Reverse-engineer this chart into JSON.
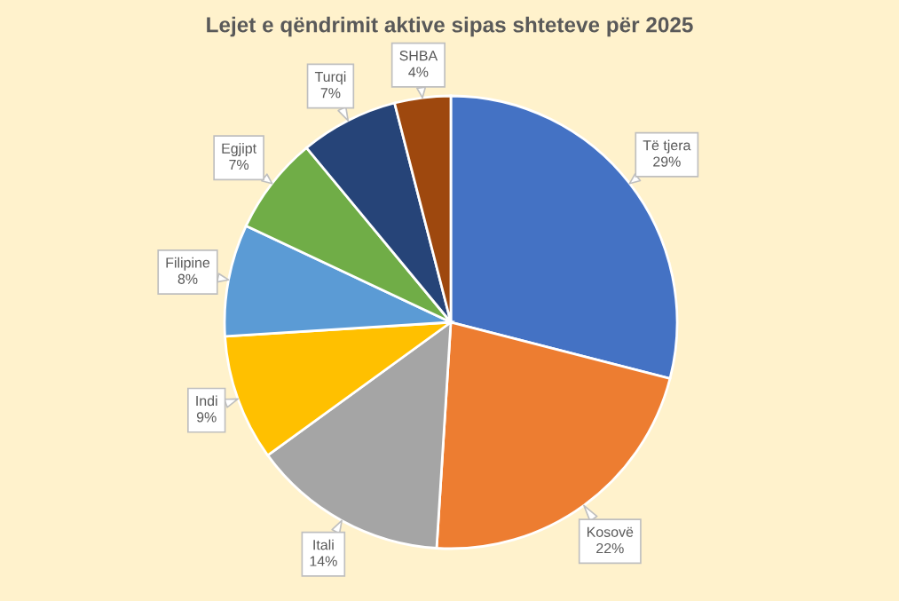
{
  "chart_data": {
    "type": "pie",
    "title": "Lejet e qëndrimit aktive sipas shteteve për 2025",
    "categories": [
      "Të tjera",
      "Kosovë",
      "Itali",
      "Indi",
      "Filipine",
      "Egjipt",
      "Turqi",
      "SHBA"
    ],
    "values": [
      29,
      22,
      14,
      9,
      8,
      7,
      7,
      4
    ],
    "value_labels": [
      "29%",
      "22%",
      "14%",
      "9%",
      "8%",
      "7%",
      "7%",
      "4%"
    ],
    "colors": [
      "#4472c4",
      "#ed7d31",
      "#a5a5a5",
      "#ffc000",
      "#5b9bd5",
      "#70ad47",
      "#264478",
      "#9e480e"
    ]
  }
}
